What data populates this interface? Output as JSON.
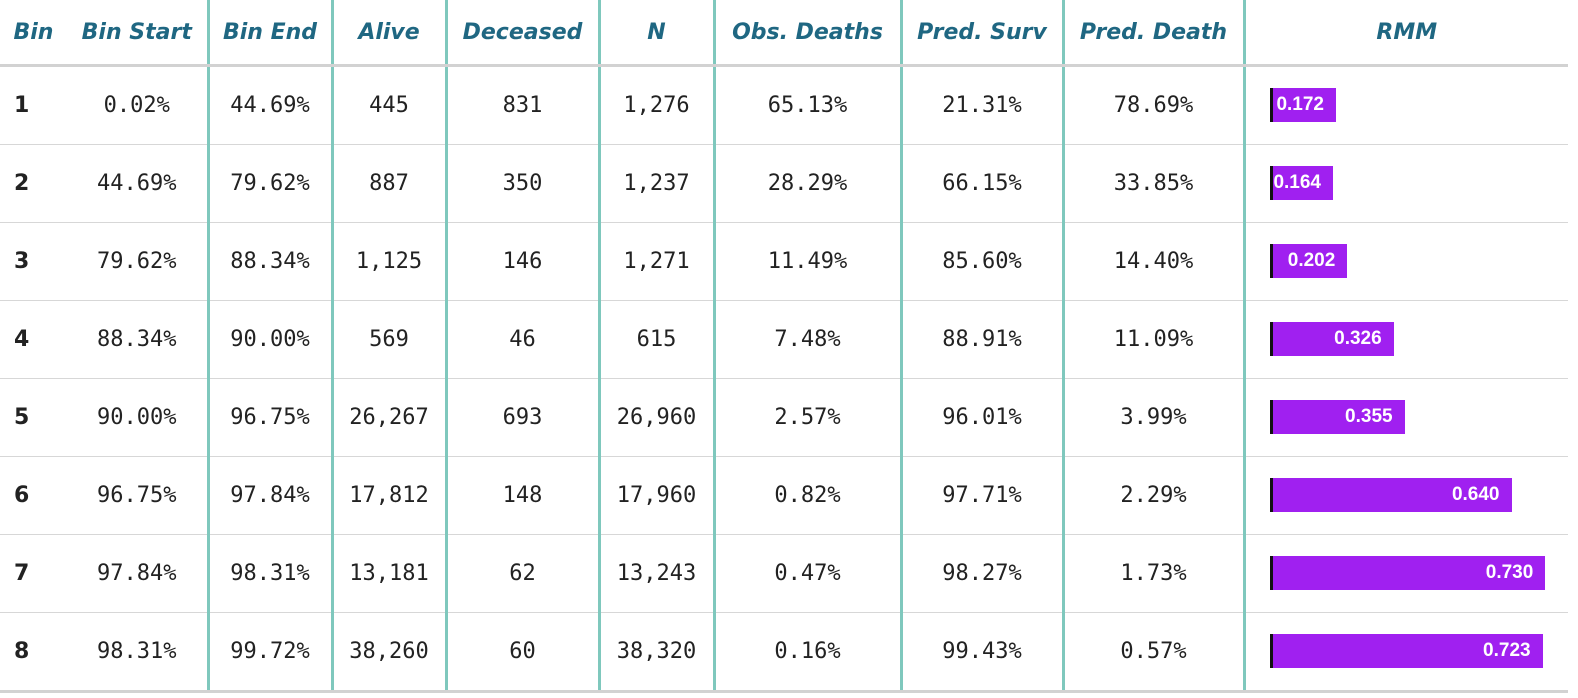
{
  "colors": {
    "header_text": "#1f6782",
    "separator": "#7fc8bd",
    "rmm_bar": "#a020f0",
    "rmm_label": "#ffffff"
  },
  "table": {
    "headers": [
      "Bin",
      "Bin Start",
      "Bin End",
      "Alive",
      "Deceased",
      "N",
      "Obs. Deaths",
      "Pred. Surv",
      "Pred. Death",
      "RMM"
    ],
    "rows": [
      {
        "cells": [
          "1",
          "0.02%",
          "44.69%",
          "445",
          "831",
          "1,276",
          "65.13%",
          "21.31%",
          "78.69%"
        ],
        "rmm_label": "0.172"
      },
      {
        "cells": [
          "2",
          "44.69%",
          "79.62%",
          "887",
          "350",
          "1,237",
          "28.29%",
          "66.15%",
          "33.85%"
        ],
        "rmm_label": "0.164"
      },
      {
        "cells": [
          "3",
          "79.62%",
          "88.34%",
          "1,125",
          "146",
          "1,271",
          "11.49%",
          "85.60%",
          "14.40%"
        ],
        "rmm_label": "0.202"
      },
      {
        "cells": [
          "4",
          "88.34%",
          "90.00%",
          "569",
          "46",
          "615",
          "7.48%",
          "88.91%",
          "11.09%"
        ],
        "rmm_label": "0.326"
      },
      {
        "cells": [
          "5",
          "90.00%",
          "96.75%",
          "26,267",
          "693",
          "26,960",
          "2.57%",
          "96.01%",
          "3.99%"
        ],
        "rmm_label": "0.355"
      },
      {
        "cells": [
          "6",
          "96.75%",
          "97.84%",
          "17,812",
          "148",
          "17,960",
          "0.82%",
          "97.71%",
          "2.29%"
        ],
        "rmm_label": "0.640"
      },
      {
        "cells": [
          "7",
          "97.84%",
          "98.31%",
          "13,181",
          "62",
          "13,243",
          "0.47%",
          "98.27%",
          "1.73%"
        ],
        "rmm_label": "0.730"
      },
      {
        "cells": [
          "8",
          "98.31%",
          "99.72%",
          "38,260",
          "60",
          "38,320",
          "0.16%",
          "99.43%",
          "0.57%"
        ],
        "rmm_label": "0.723"
      }
    ]
  },
  "chart_data": {
    "type": "table",
    "columns": [
      "Bin",
      "Bin Start",
      "Bin End",
      "Alive",
      "Deceased",
      "N",
      "Obs. Deaths",
      "Pred. Surv",
      "Pred. Death",
      "RMM"
    ],
    "rmm_values": [
      0.172,
      0.164,
      0.202,
      0.326,
      0.355,
      0.64,
      0.73,
      0.723
    ],
    "rmm_range": [
      0,
      0.8
    ]
  }
}
